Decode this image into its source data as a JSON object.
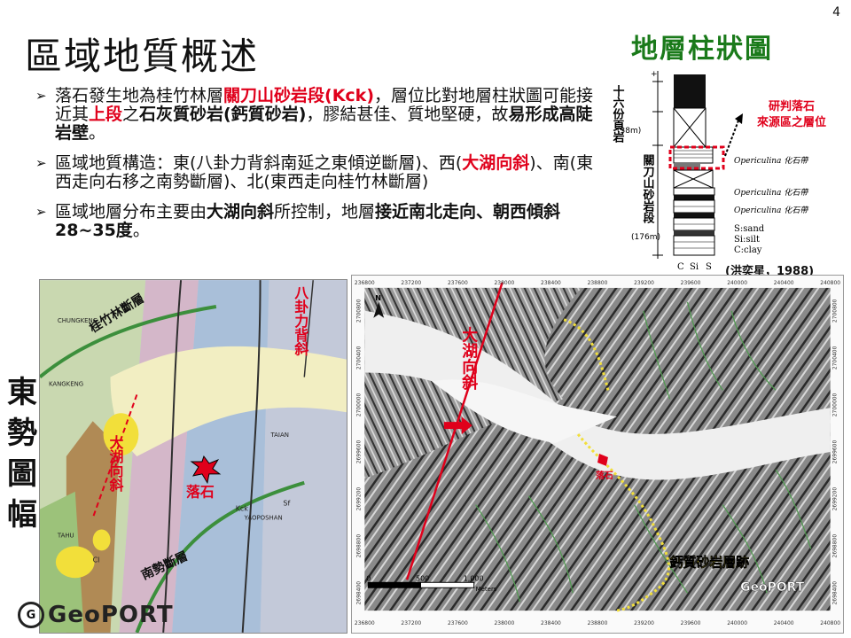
{
  "page_number": "4",
  "title": "區域地質概述",
  "bullets": [
    {
      "parts": [
        {
          "t": "落石發生地為桂竹林層",
          "s": ""
        },
        {
          "t": "關刀山砂岩段(Kck)",
          "s": "red"
        },
        {
          "t": "，層位比對地層柱狀圖可能接近其",
          "s": ""
        },
        {
          "t": "上段",
          "s": "red"
        },
        {
          "t": "之",
          "s": ""
        },
        {
          "t": "石灰質砂岩(鈣質砂岩)",
          "s": "bold"
        },
        {
          "t": "，膠結甚佳、質地堅硬，故",
          "s": ""
        },
        {
          "t": "易形成高陡岩壁",
          "s": "bold"
        },
        {
          "t": "。",
          "s": ""
        }
      ]
    },
    {
      "parts": [
        {
          "t": "區域地質構造：東(八卦力背斜南延之東傾逆斷層)、西(",
          "s": ""
        },
        {
          "t": "大湖向斜",
          "s": "red"
        },
        {
          "t": ")、南(東西走向右移之南勢斷層)、北(東西走向桂竹林斷層)",
          "s": ""
        }
      ]
    },
    {
      "parts": [
        {
          "t": "區域地層分布主要由",
          "s": ""
        },
        {
          "t": "大湖向斜",
          "s": "bold"
        },
        {
          "t": "所控制，地層",
          "s": ""
        },
        {
          "t": "接近南北走向、朝西傾斜28~35度",
          "s": "bold"
        },
        {
          "t": "。",
          "s": ""
        }
      ]
    }
  ],
  "strat": {
    "title": "地層柱狀圖",
    "upper_unit": "十六份頁岩",
    "upper_thickness": "(38m)",
    "lower_unit": "關刀山砂岩段",
    "lower_thickness": "(176m)",
    "fossil_labels": [
      "Opericulina 化石帶",
      "Opericulina 化石帶",
      "Opericulina 化石帶"
    ],
    "annotation": [
      "研判落石",
      "來源區之層位"
    ],
    "legend": [
      "S:sand",
      "Si:silt",
      "C:clay"
    ],
    "axis": [
      "C",
      "Si",
      "S"
    ],
    "citation": "(洪奕星，1988)"
  },
  "side_label": [
    "東",
    "勢",
    "圖",
    "幅"
  ],
  "geomap": {
    "labels": {
      "fault_north": "桂竹林斷層",
      "fault_south": "南勢斷層",
      "anticline": "八卦力背斜",
      "syncline": "大湖向斜",
      "rockfall": "落石",
      "place1": "CHUNGKENG",
      "place2": "KANGKENG",
      "place3": "TAIAN",
      "place4": "YAOPOSHAN",
      "place5": "TAHU",
      "unit1": "Kck",
      "unit2": "Sf",
      "unit3": "Cl"
    }
  },
  "hillmap": {
    "syncline": "大湖向斜",
    "rockfall": "落石",
    "limestone": "鈣質砂岩層跡",
    "scale_labels": [
      "0",
      "500",
      "1,000"
    ],
    "scale_unit": "Meters",
    "north": "N",
    "watermark": "GeoPORT",
    "x_ticks": [
      "236800",
      "237200",
      "237600",
      "238000",
      "238400",
      "238800",
      "239200",
      "239600",
      "240000",
      "240400",
      "240800"
    ],
    "y_ticks": [
      "2700800",
      "2700400",
      "2700000",
      "2699600",
      "2699200",
      "2698800",
      "2698400"
    ]
  },
  "logo": {
    "text": "GeoPORT",
    "mark": "G"
  },
  "colors": {
    "accent_red": "#e0001b",
    "title_green": "#1a7a1a",
    "fold_yellow": "#f2df3a",
    "fault_green": "#3c8f3c"
  }
}
